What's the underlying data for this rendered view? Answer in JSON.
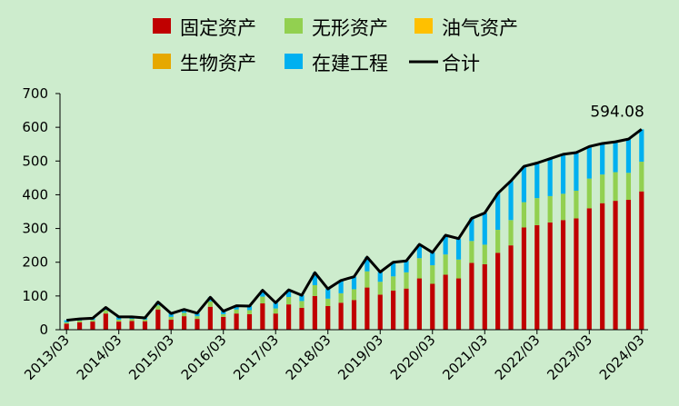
{
  "colors": {
    "background": "#cdeccd",
    "fixed_assets": "#c00000",
    "intangible_assets": "#92d050",
    "oil_gas_assets": "#ffc000",
    "biological_assets": "#e6a800",
    "construction_in_progress": "#00b0f0",
    "total": "#000000"
  },
  "chart_data": {
    "type": "bar",
    "stacked": true,
    "title": "",
    "xlabel": "",
    "ylabel": "",
    "ylim": [
      0,
      700
    ],
    "yticks": [
      "0",
      "100",
      "200",
      "300",
      "400",
      "500",
      "600",
      "700"
    ],
    "xticks": [
      "2013/03",
      "2014/03",
      "2015/03",
      "2016/03",
      "2017/03",
      "2018/03",
      "2019/03",
      "2020/03",
      "2021/03",
      "2022/03",
      "2023/03",
      "2024/03"
    ],
    "categories": [
      "2013/03",
      "2013/06",
      "2013/09",
      "2013/12",
      "2014/03",
      "2014/06",
      "2014/09",
      "2014/12",
      "2015/03",
      "2015/06",
      "2015/09",
      "2015/12",
      "2016/03",
      "2016/06",
      "2016/09",
      "2016/12",
      "2017/03",
      "2017/06",
      "2017/09",
      "2017/12",
      "2018/03",
      "2018/06",
      "2018/09",
      "2018/12",
      "2019/03",
      "2019/06",
      "2019/09",
      "2019/12",
      "2020/03",
      "2020/06",
      "2020/09",
      "2020/12",
      "2021/03",
      "2021/06",
      "2021/09",
      "2021/12",
      "2022/03",
      "2022/06",
      "2022/09",
      "2022/12",
      "2023/03",
      "2023/06",
      "2023/09",
      "2023/12",
      "2024/03"
    ],
    "series": [
      {
        "name": "固定资产",
        "key": "fixed_assets",
        "values": [
          18,
          22,
          24,
          48,
          24,
          26,
          25,
          60,
          30,
          40,
          32,
          68,
          38,
          48,
          46,
          78,
          48,
          75,
          65,
          100,
          70,
          80,
          88,
          125,
          104,
          116,
          122,
          152,
          136,
          163,
          152,
          198,
          194,
          228,
          250,
          303,
          310,
          318,
          325,
          330,
          360,
          375,
          382,
          385,
          410
        ]
      },
      {
        "name": "无形资产",
        "key": "intangible_assets",
        "values": [
          4,
          5,
          5,
          10,
          6,
          6,
          5,
          12,
          8,
          10,
          8,
          16,
          8,
          12,
          12,
          20,
          15,
          22,
          20,
          32,
          22,
          28,
          32,
          48,
          38,
          42,
          48,
          60,
          55,
          60,
          56,
          65,
          58,
          68,
          75,
          75,
          80,
          78,
          78,
          82,
          88,
          85,
          85,
          80,
          88
        ]
      },
      {
        "name": "油气资产",
        "key": "oil_gas_assets",
        "values": [
          0,
          0,
          0,
          0,
          0,
          0,
          0,
          0,
          0,
          0,
          0,
          0,
          0,
          0,
          0,
          0,
          0,
          0,
          0,
          0,
          0,
          0,
          0,
          0,
          0,
          0,
          0,
          0,
          0,
          0,
          0,
          0,
          0,
          0,
          0,
          0,
          0,
          0,
          0,
          0,
          0,
          0,
          0,
          0,
          0
        ]
      },
      {
        "name": "生物资产",
        "key": "biological_assets",
        "values": [
          0,
          0,
          0,
          0,
          0,
          0,
          0,
          0,
          0,
          0,
          0,
          0,
          0,
          0,
          0,
          0,
          0,
          0,
          0,
          0,
          0,
          0,
          0,
          0,
          0,
          0,
          0,
          0,
          0,
          0,
          0,
          0,
          0,
          0,
          0,
          0,
          0,
          0,
          0,
          0,
          0,
          0,
          0,
          0,
          0
        ]
      },
      {
        "name": "在建工程",
        "key": "construction_in_progress",
        "values": [
          6,
          5,
          5,
          8,
          8,
          6,
          5,
          10,
          10,
          10,
          9,
          12,
          9,
          11,
          12,
          19,
          17,
          21,
          17,
          37,
          29,
          38,
          37,
          42,
          29,
          42,
          34,
          41,
          38,
          57,
          62,
          67,
          94,
          108,
          116,
          106,
          104,
          111,
          117,
          113,
          95,
          92,
          90,
          100,
          96
        ]
      },
      {
        "name": "合计",
        "key": "total",
        "type": "line",
        "values": [
          28,
          32,
          34,
          66,
          38,
          38,
          35,
          82,
          48,
          60,
          49,
          96,
          55,
          71,
          70,
          117,
          80,
          118,
          102,
          169,
          121,
          146,
          157,
          215,
          171,
          200,
          204,
          253,
          229,
          280,
          270,
          330,
          346,
          404,
          441,
          484,
          494,
          507,
          520,
          525,
          543,
          552,
          557,
          565,
          594.08
        ]
      }
    ],
    "annotation": {
      "text": "594.08"
    },
    "legend": {
      "position": "top",
      "rows": [
        [
          "固定资产",
          "无形资产",
          "油气资产"
        ],
        [
          "生物资产",
          "在建工程",
          "合计"
        ]
      ]
    }
  }
}
